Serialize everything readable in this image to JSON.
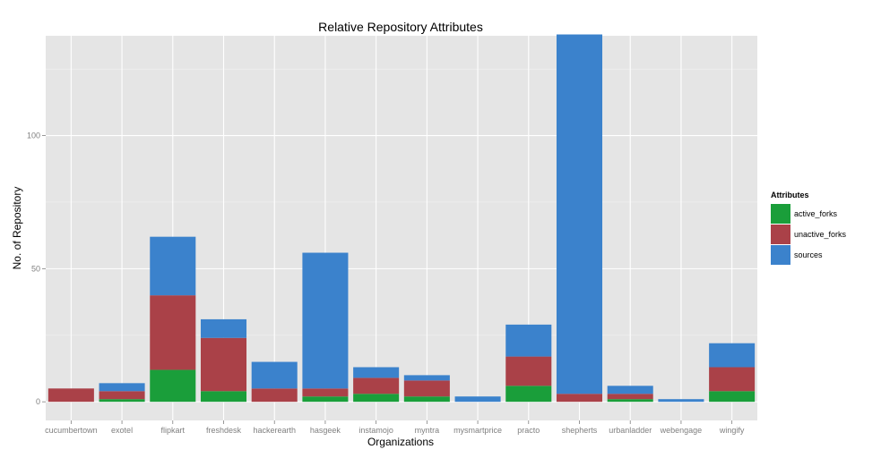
{
  "chart_data": {
    "type": "bar",
    "stacked": true,
    "title": "Relative Repository Attributes",
    "xlabel": "Organizations",
    "ylabel": "No. of Repository",
    "ylim": [
      -7,
      137.5
    ],
    "yticks": [
      0,
      50,
      100
    ],
    "grid": true,
    "legend_placement": "right",
    "legend_title": "Attributes",
    "categories": [
      "cucumbertown",
      "exotel",
      "flipkart",
      "freshdesk",
      "hackerearth",
      "hasgeek",
      "instamojo",
      "myntra",
      "mysmartprice",
      "practo",
      "shepherts",
      "urbanladder",
      "webengage",
      "wingify"
    ],
    "series": [
      {
        "name": "active_forks",
        "color": "#1a9e3a",
        "values": [
          0,
          1,
          12,
          4,
          0,
          2,
          3,
          2,
          0,
          6,
          0,
          1,
          0,
          4
        ]
      },
      {
        "name": "unactive_forks",
        "color": "#aa4148",
        "values": [
          5,
          3,
          28,
          20,
          5,
          3,
          6,
          6,
          0,
          11,
          3,
          2,
          0,
          9
        ]
      },
      {
        "name": "sources",
        "color": "#3b82cc",
        "values": [
          0,
          3,
          22,
          7,
          10,
          51,
          4,
          2,
          2,
          12,
          135,
          3,
          1,
          9
        ]
      }
    ]
  }
}
